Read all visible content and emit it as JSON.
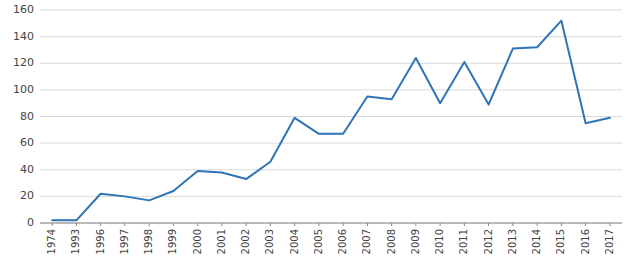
{
  "chart_data": {
    "type": "line",
    "categories": [
      "1974",
      "1993",
      "1996",
      "1997",
      "1998",
      "1999",
      "2000",
      "2001",
      "2002",
      "2003",
      "2004",
      "2005",
      "2006",
      "2007",
      "2008",
      "2009",
      "2010",
      "2011",
      "2012",
      "2013",
      "2014",
      "2015",
      "2016",
      "2017"
    ],
    "values": [
      2,
      2,
      22,
      20,
      17,
      24,
      39,
      38,
      33,
      46,
      79,
      67,
      67,
      95,
      93,
      124,
      90,
      121,
      89,
      131,
      132,
      152,
      75,
      79
    ],
    "color": "#2E75B6",
    "ylim": [
      0,
      160
    ],
    "yticks": [
      0,
      20,
      40,
      60,
      80,
      100,
      120,
      140,
      160
    ],
    "grid": true
  }
}
